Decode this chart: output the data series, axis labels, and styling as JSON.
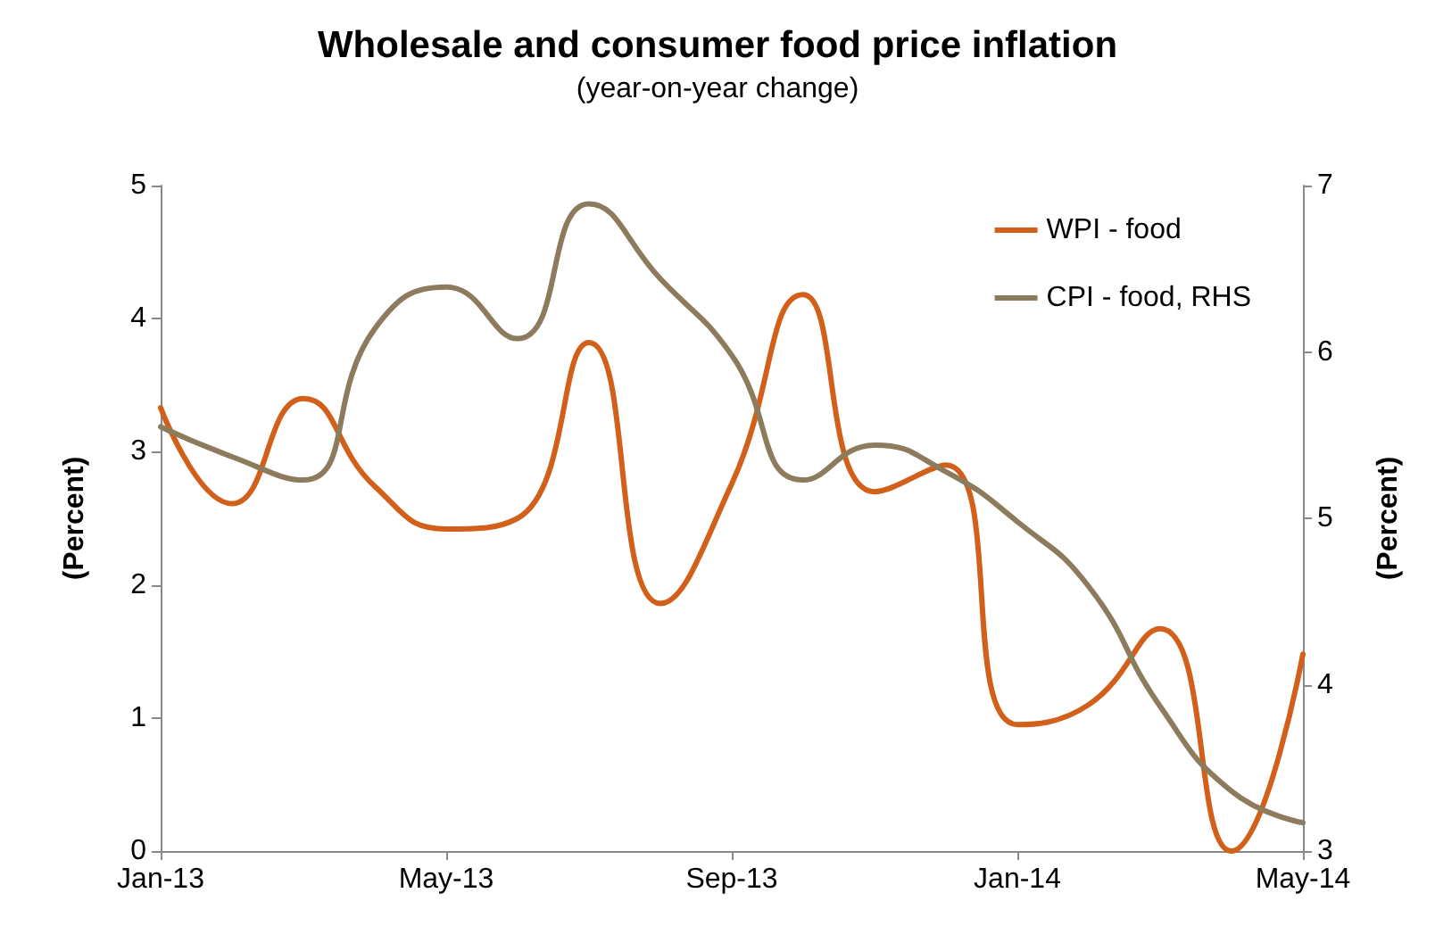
{
  "chart_data": {
    "type": "line",
    "title": "Wholesale and consumer food price inflation",
    "subtitle": "(year-on-year change)",
    "ylabel": "(Percent)",
    "y2label": "(Percent)",
    "categories": [
      "Jan-13",
      null,
      null,
      null,
      "May-13",
      null,
      null,
      null,
      "Sep-13",
      null,
      null,
      null,
      "Jan-14",
      null,
      null,
      null,
      "May-14"
    ],
    "series": [
      {
        "name": "WPI - food",
        "color": "#d2601a",
        "values": [
          3.33,
          2.61,
          3.4,
          2.74,
          2.42,
          2.5,
          3.82,
          1.86,
          2.76,
          4.18,
          2.7,
          2.9,
          0.95,
          1.1,
          1.67,
          0,
          1.48
        ]
      },
      {
        "name": "CPI - food, RHS",
        "color": "#8c7b5c",
        "axis": "y2",
        "values": [
          5.55,
          5.37,
          5.23,
          6.14,
          6.39,
          6.08,
          6.89,
          6.44,
          5.98,
          5.23,
          5.44,
          5.28,
          4.98,
          4.59,
          3.87,
          3.36,
          3.17
        ]
      }
    ],
    "ylim": [
      0,
      5
    ],
    "yticks": [
      0,
      1,
      2,
      3,
      4,
      5
    ],
    "y2lim": [
      3,
      7
    ],
    "y2ticks": [
      3,
      4,
      5,
      6,
      7
    ],
    "legend": "top right",
    "grid": false,
    "marker": "none",
    "line_style": "solid"
  }
}
